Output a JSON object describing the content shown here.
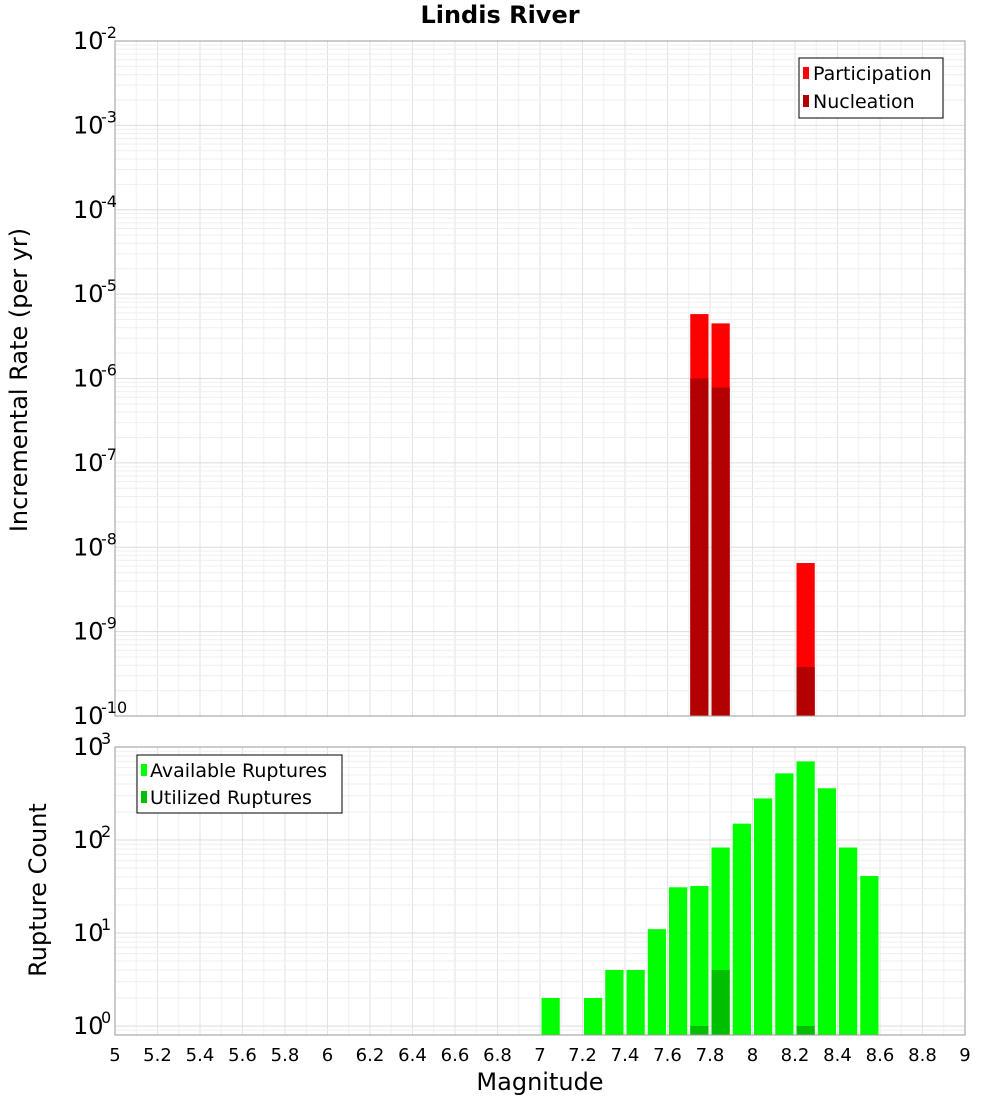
{
  "chart_data": [
    {
      "type": "bar",
      "title": "Lindis River",
      "ylabel": "Incremental Rate (per yr)",
      "yscale": "log",
      "ylim": [
        1e-10,
        0.01
      ],
      "xlim": [
        5,
        9
      ],
      "y_ticks": [
        {
          "base": "10",
          "exp": "-10"
        },
        {
          "base": "10",
          "exp": "-9"
        },
        {
          "base": "10",
          "exp": "-8"
        },
        {
          "base": "10",
          "exp": "-7"
        },
        {
          "base": "10",
          "exp": "-6"
        },
        {
          "base": "10",
          "exp": "-5"
        },
        {
          "base": "10",
          "exp": "-4"
        },
        {
          "base": "10",
          "exp": "-3"
        },
        {
          "base": "10",
          "exp": "-2"
        }
      ],
      "bar_width": 0.1,
      "series": [
        {
          "name": "Participation",
          "color": "#ff0000",
          "x": [
            7.75,
            7.85,
            8.25
          ],
          "values": [
            5.8e-06,
            4.5e-06,
            6.5e-09
          ]
        },
        {
          "name": "Nucleation",
          "color": "#b30000",
          "x": [
            7.75,
            7.85,
            8.25
          ],
          "values": [
            1e-06,
            7.8e-07,
            3.8e-10
          ]
        }
      ],
      "legend_position": "top-right",
      "grid": true
    },
    {
      "type": "bar",
      "xlabel": "Magnitude",
      "ylabel": "Rupture Count",
      "yscale": "log",
      "ylim": [
        0.8,
        1000
      ],
      "xlim": [
        5,
        9
      ],
      "y_ticks": [
        {
          "base": "10",
          "exp": "0",
          "value": 1
        },
        {
          "base": "10",
          "exp": "1",
          "value": 10
        },
        {
          "base": "10",
          "exp": "2",
          "value": 100
        },
        {
          "base": "10",
          "exp": "3",
          "value": 1000
        }
      ],
      "x_ticks": [
        "5",
        "5.2",
        "5.4",
        "5.6",
        "5.8",
        "6",
        "6.2",
        "6.4",
        "6.6",
        "6.8",
        "7",
        "7.2",
        "7.4",
        "7.6",
        "7.8",
        "8",
        "8.2",
        "8.4",
        "8.6",
        "8.8",
        "9"
      ],
      "bar_width": 0.1,
      "series": [
        {
          "name": "Available Ruptures",
          "color": "#00ff00",
          "x": [
            7.05,
            7.25,
            7.35,
            7.45,
            7.55,
            7.65,
            7.75,
            7.85,
            7.95,
            8.05,
            8.15,
            8.25,
            8.35,
            8.45,
            8.55
          ],
          "values": [
            2,
            2,
            4,
            4,
            11,
            31,
            32,
            83,
            150,
            280,
            520,
            700,
            360,
            83,
            41
          ]
        },
        {
          "name": "Utilized Ruptures",
          "color": "#00bf00",
          "x": [
            7.75,
            7.85,
            8.25
          ],
          "values": [
            1,
            4,
            1
          ]
        }
      ],
      "legend_position": "top-left",
      "grid": true
    }
  ]
}
